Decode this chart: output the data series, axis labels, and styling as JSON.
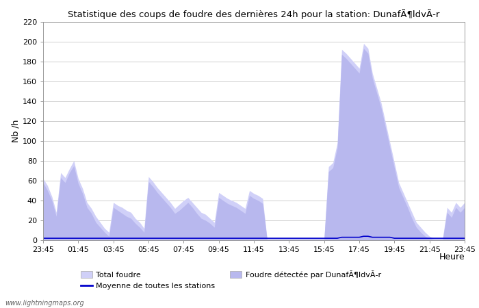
{
  "title": "Statistique des coups de foudre des dernières 24h pour la station: DunafÃ¶ldvÃ­r",
  "xlabel": "Heure",
  "ylabel": "Nb /h",
  "ylim": [
    0,
    220
  ],
  "yticks": [
    0,
    20,
    40,
    60,
    80,
    100,
    120,
    140,
    160,
    180,
    200,
    220
  ],
  "xtick_labels": [
    "23:45",
    "01:45",
    "03:45",
    "05:45",
    "07:45",
    "09:45",
    "11:45",
    "13:45",
    "15:45",
    "17:45",
    "19:45",
    "21:45",
    "23:45"
  ],
  "background_color": "#ffffff",
  "plot_bg_color": "#ffffff",
  "grid_color": "#c8c8c8",
  "total_foudre_color": "#d0d0f8",
  "local_foudre_color": "#b8b8ee",
  "moyenne_color": "#0000cc",
  "watermark": "www.lightningmaps.org",
  "legend_total": "Total foudre",
  "legend_local": "Foudre détectée par DunafÃ¶ldvÃ­r",
  "legend_moyenne": "Moyenne de toutes les stations",
  "n_points": 97,
  "total_foudre": [
    62,
    55,
    44,
    28,
    68,
    63,
    72,
    80,
    62,
    52,
    38,
    32,
    24,
    18,
    12,
    8,
    38,
    35,
    33,
    30,
    28,
    22,
    18,
    12,
    64,
    59,
    53,
    48,
    43,
    38,
    32,
    36,
    40,
    43,
    38,
    33,
    28,
    26,
    22,
    18,
    48,
    45,
    42,
    40,
    38,
    35,
    32,
    50,
    47,
    45,
    42,
    2,
    2,
    2,
    2,
    2,
    2,
    2,
    2,
    2,
    2,
    2,
    2,
    2,
    2,
    74,
    78,
    98,
    192,
    188,
    183,
    178,
    173,
    198,
    193,
    168,
    153,
    138,
    118,
    98,
    78,
    58,
    48,
    38,
    28,
    18,
    13,
    8,
    4,
    2,
    2,
    2,
    33,
    28,
    38,
    33,
    38
  ],
  "local_foudre": [
    58,
    50,
    40,
    24,
    63,
    58,
    68,
    75,
    57,
    47,
    33,
    27,
    18,
    13,
    8,
    4,
    33,
    30,
    27,
    24,
    22,
    17,
    13,
    8,
    59,
    54,
    48,
    43,
    38,
    33,
    27,
    30,
    34,
    38,
    33,
    27,
    22,
    20,
    17,
    13,
    43,
    40,
    37,
    35,
    33,
    30,
    27,
    45,
    42,
    40,
    37,
    1,
    1,
    1,
    1,
    1,
    1,
    1,
    1,
    1,
    1,
    1,
    1,
    1,
    1,
    69,
    73,
    93,
    187,
    183,
    178,
    173,
    168,
    193,
    188,
    163,
    148,
    133,
    113,
    93,
    73,
    53,
    43,
    33,
    22,
    13,
    8,
    4,
    2,
    1,
    1,
    1,
    28,
    23,
    33,
    28,
    33
  ],
  "moyenne": [
    2,
    2,
    2,
    2,
    2,
    2,
    2,
    2,
    2,
    2,
    2,
    2,
    2,
    2,
    2,
    2,
    2,
    2,
    2,
    2,
    2,
    2,
    2,
    2,
    2,
    2,
    2,
    2,
    2,
    2,
    2,
    2,
    2,
    2,
    2,
    2,
    2,
    2,
    2,
    2,
    2,
    2,
    2,
    2,
    2,
    2,
    2,
    2,
    2,
    2,
    2,
    2,
    2,
    2,
    2,
    2,
    2,
    2,
    2,
    2,
    2,
    2,
    2,
    2,
    2,
    2,
    2,
    2,
    3,
    3,
    3,
    3,
    3,
    4,
    4,
    3,
    3,
    3,
    3,
    3,
    2,
    2,
    2,
    2,
    2,
    2,
    2,
    2,
    2,
    2,
    2,
    2,
    2,
    2,
    2,
    2,
    2
  ]
}
